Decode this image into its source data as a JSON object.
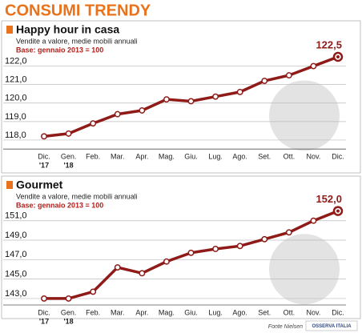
{
  "title": "CONSUMI TRENDY",
  "source": "Fonte Nielsen",
  "logo": "OSSERVA ITALIA",
  "chart_data": [
    {
      "type": "line",
      "title": "Happy hour in casa",
      "subtitle": "Vendite a valore, medie mobili annuali",
      "note": "Base: gennaio 2013 = 100",
      "categories": [
        "Dic.",
        "Gen.",
        "Feb.",
        "Mar.",
        "Apr.",
        "Mag.",
        "Giu.",
        "Lug.",
        "Ago.",
        "Set.",
        "Ott.",
        "Nov.",
        "Dic."
      ],
      "category_years": [
        "'17",
        "'18",
        null,
        null,
        null,
        null,
        null,
        null,
        null,
        null,
        null,
        null,
        null
      ],
      "series": [
        {
          "name": "Happy hour in casa",
          "color": "#8e1b17",
          "values": [
            118.2,
            118.35,
            118.9,
            119.4,
            119.6,
            120.2,
            120.1,
            120.35,
            120.6,
            121.2,
            121.5,
            122.0,
            122.5
          ],
          "value_labels": [
            null,
            null,
            null,
            null,
            null,
            null,
            null,
            null,
            null,
            null,
            null,
            null,
            "122,5"
          ]
        }
      ],
      "ylim": [
        117.6,
        122.6
      ],
      "yticks": [
        {
          "value": 118,
          "label": "118,0"
        },
        {
          "value": 119,
          "label": "119,0"
        },
        {
          "value": 120,
          "label": "120,0"
        },
        {
          "value": 121,
          "label": "121,0"
        },
        {
          "value": 122,
          "label": "122,0"
        }
      ],
      "grid": true
    },
    {
      "type": "line",
      "title": "Gourmet",
      "subtitle": "Vendite a valore, medie mobili annuali",
      "note": "Base: gennaio 2013 = 100",
      "categories": [
        "Dic.",
        "Gen.",
        "Feb.",
        "Mar.",
        "Apr.",
        "Mag.",
        "Giu.",
        "Lug.",
        "Ago.",
        "Set.",
        "Ott.",
        "Nov.",
        "Dic."
      ],
      "category_years": [
        "'17",
        "'18",
        null,
        null,
        null,
        null,
        null,
        null,
        null,
        null,
        null,
        null,
        null
      ],
      "series": [
        {
          "name": "Gourmet",
          "color": "#8e1b17",
          "values": [
            143.0,
            143.0,
            143.7,
            146.2,
            145.6,
            146.8,
            147.7,
            148.1,
            148.4,
            149.1,
            149.8,
            151.0,
            152.0
          ],
          "value_labels": [
            null,
            null,
            null,
            null,
            null,
            null,
            null,
            null,
            null,
            null,
            null,
            null,
            "152,0"
          ]
        }
      ],
      "ylim": [
        142.5,
        152.5
      ],
      "yticks": [
        {
          "value": 143,
          "label": "143,0"
        },
        {
          "value": 145,
          "label": "145,0"
        },
        {
          "value": 147,
          "label": "147,0"
        },
        {
          "value": 149,
          "label": "149,0"
        },
        {
          "value": 151,
          "label": "151,0"
        }
      ],
      "grid": true
    }
  ]
}
